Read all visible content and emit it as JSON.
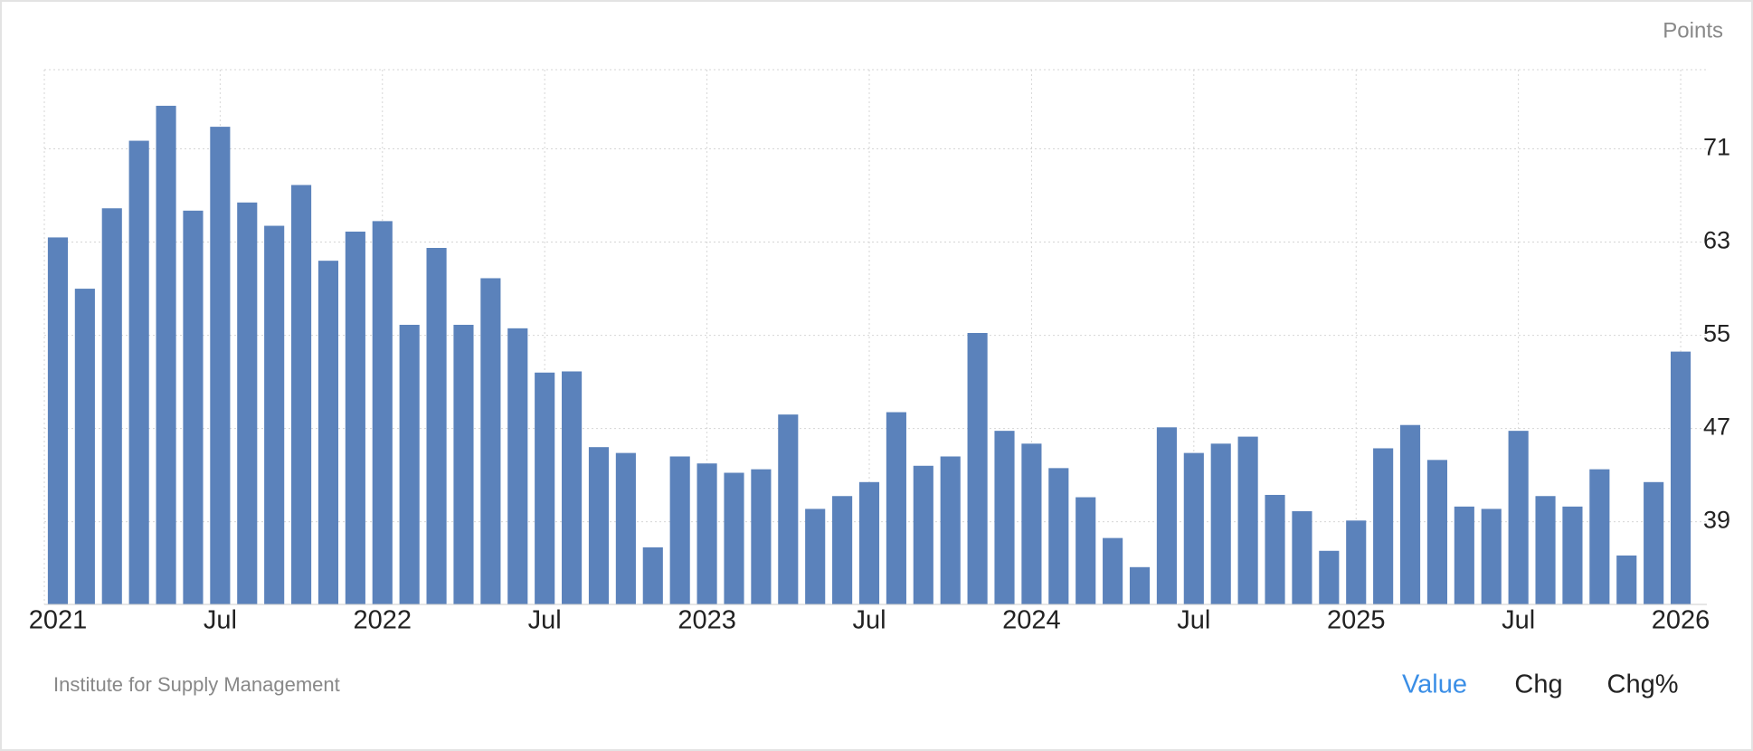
{
  "chart_data": {
    "type": "bar",
    "unit_label": "Points",
    "source": "Institute for Supply Management",
    "color": "#5b82bb",
    "categories": [
      "2021",
      null,
      null,
      null,
      null,
      null,
      "Jul",
      null,
      null,
      null,
      null,
      null,
      "2022",
      null,
      null,
      null,
      null,
      null,
      "Jul",
      null,
      null,
      null,
      null,
      null,
      "2023",
      null,
      null,
      null,
      null,
      null,
      "Jul",
      null,
      null,
      null,
      null,
      null,
      "2024",
      null,
      null,
      null,
      null,
      null,
      "Jul",
      null,
      null,
      null,
      null,
      null,
      "2025",
      null,
      null,
      null,
      null,
      null,
      "Jul",
      null,
      null,
      null,
      null,
      null,
      "2026"
    ],
    "values": [
      63.4,
      59.0,
      65.9,
      71.7,
      74.7,
      65.7,
      72.9,
      66.4,
      64.4,
      67.9,
      61.4,
      63.9,
      64.8,
      55.9,
      62.5,
      55.9,
      59.9,
      55.6,
      51.8,
      51.9,
      45.4,
      44.9,
      36.8,
      44.6,
      44.0,
      43.2,
      43.5,
      48.2,
      40.1,
      41.2,
      42.4,
      48.4,
      43.8,
      44.6,
      55.2,
      46.8,
      45.7,
      43.6,
      41.1,
      37.6,
      35.1,
      47.1,
      44.9,
      45.7,
      46.3,
      41.3,
      39.9,
      36.5,
      39.1,
      45.3,
      47.3,
      44.3,
      40.3,
      40.1,
      46.8,
      41.2,
      40.3,
      43.5,
      36.1,
      42.4,
      53.6
    ],
    "ylim": [
      31.9,
      77.8
    ],
    "yticks": [
      39,
      47,
      55,
      63,
      71
    ],
    "grid": true
  },
  "controls": {
    "tabs": [
      "Value",
      "Chg",
      "Chg%"
    ],
    "active": 0
  }
}
